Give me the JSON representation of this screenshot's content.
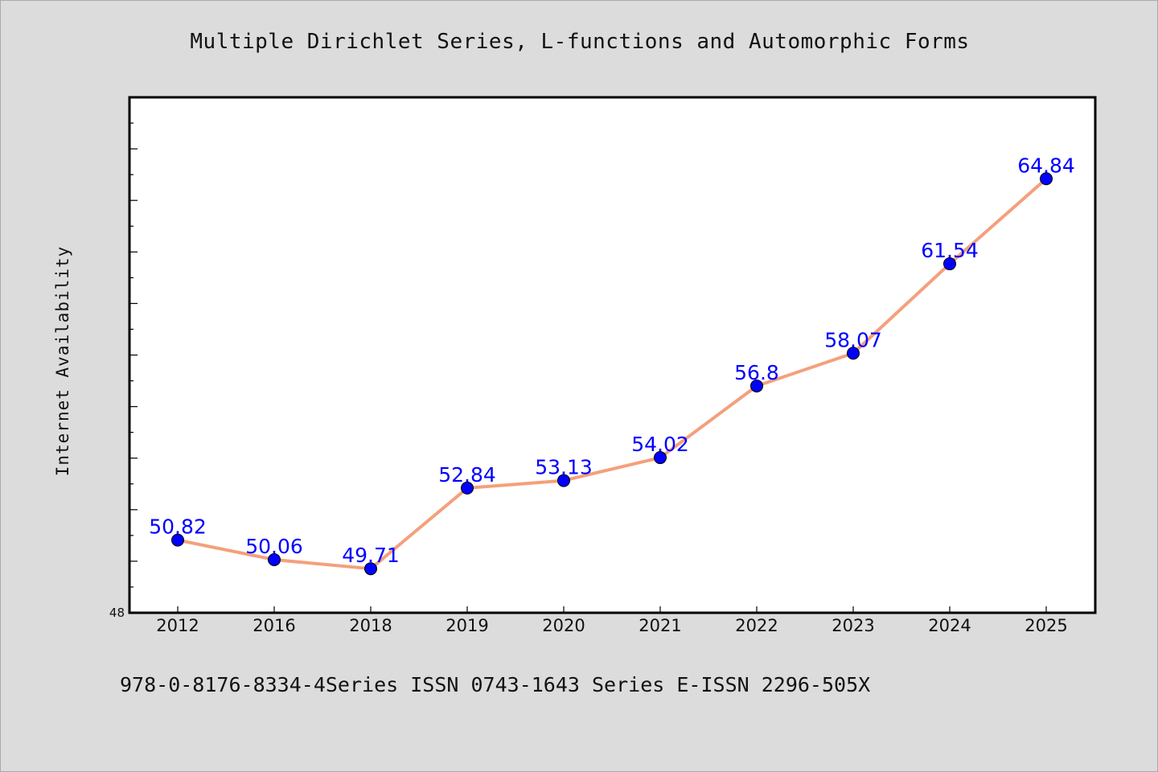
{
  "chart_data": {
    "type": "line",
    "title": "Multiple Dirichlet Series, L-functions and Automorphic Forms",
    "xlabel": "",
    "ylabel": "Internet Availability",
    "x": [
      "2012",
      "2016",
      "2018",
      "2019",
      "2020",
      "2021",
      "2022",
      "2023",
      "2024",
      "2025"
    ],
    "series": [
      {
        "values": [
          50.82,
          50.06,
          49.71,
          52.84,
          53.13,
          54.02,
          56.8,
          58.07,
          61.54,
          64.84
        ],
        "labels": [
          "50.82",
          "50.06",
          "49.71",
          "52.84",
          "53.13",
          "54.02",
          "56.8",
          "58.07",
          "61.54",
          "64.84"
        ]
      }
    ],
    "ylim": [
      48,
      68
    ],
    "y_tick_labels": [
      "48"
    ],
    "grid": false,
    "legend": "none",
    "colors": {
      "line": "#f4a07c",
      "marker": "#0000ff",
      "data_label": "#0000ff",
      "background": "#dcdcdc",
      "plot_area": "#ffffff"
    }
  },
  "footer": {
    "text": "978-0-8176-8334-4Series ISSN 0743-1643 Series E-ISSN 2296-505X"
  }
}
